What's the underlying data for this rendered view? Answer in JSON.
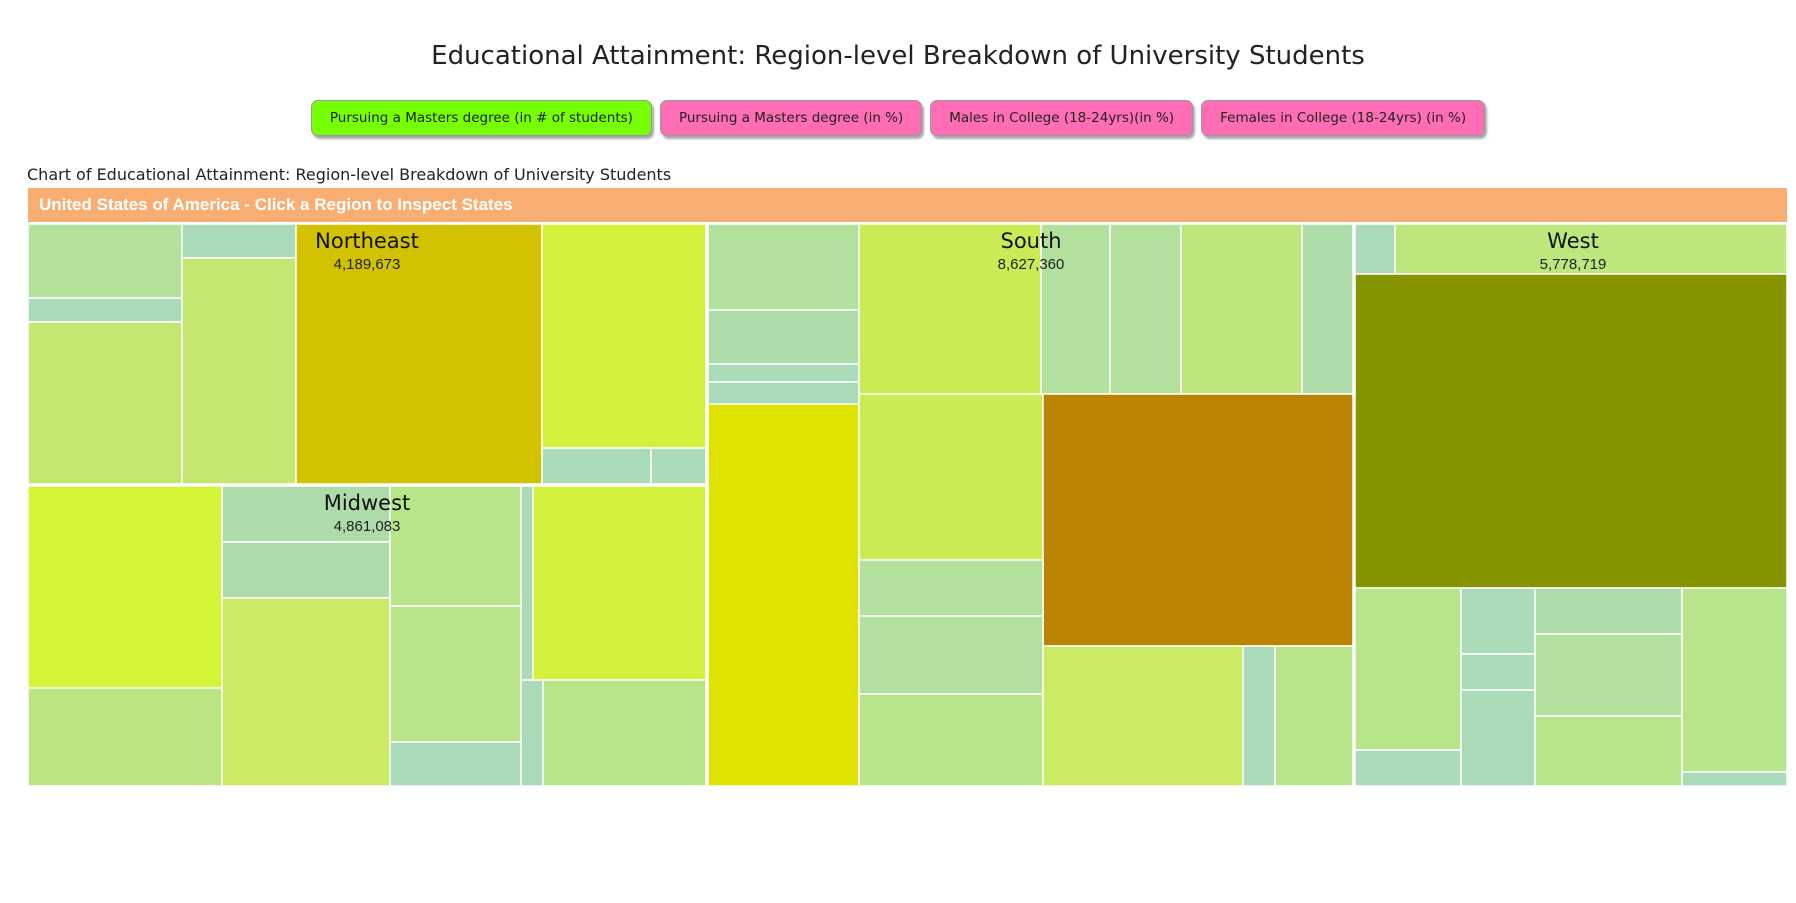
{
  "page": {
    "title": "Educational Attainment: Region-level Breakdown of University Students",
    "chart_caption": "Chart of Educational Attainment: Region-level Breakdown of University Students",
    "header": "United States of America - Click a Region to Inspect States"
  },
  "buttons": [
    {
      "label": "Pursuing a Masters degree (in # of students)",
      "active": true
    },
    {
      "label": "Pursuing a Masters degree (in %)",
      "active": false
    },
    {
      "label": "Males in College (18-24yrs)(in %)",
      "active": false
    },
    {
      "label": "Females in College (18-24yrs) (in %)",
      "active": false
    }
  ],
  "colors": {
    "active_button": "#76ff00",
    "inactive_button": "#ff6eb4",
    "header_bar": "#f8ae72"
  },
  "chart_data": {
    "type": "treemap",
    "metric": "Pursuing a Masters degree (in # of students)",
    "regions": [
      {
        "name": "Northeast",
        "value": 4189673,
        "value_label": "4,189,673"
      },
      {
        "name": "Midwest",
        "value": 4861083,
        "value_label": "4,861,083"
      },
      {
        "name": "South",
        "value": 8627360,
        "value_label": "8,627,360"
      },
      {
        "name": "West",
        "value": 5778719,
        "value_label": "5,778,719"
      }
    ]
  }
}
